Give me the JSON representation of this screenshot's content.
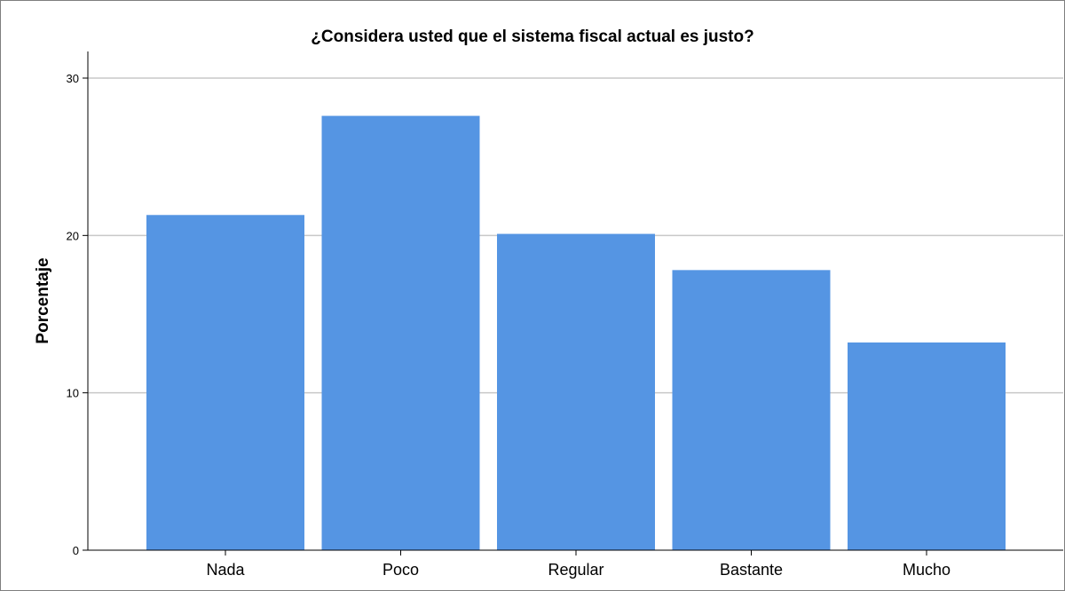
{
  "chart_data": {
    "type": "bar",
    "title": "¿Considera usted que el sistema fiscal actual es justo?",
    "xlabel": "",
    "ylabel": "Porcentaje",
    "categories": [
      "Nada",
      "Poco",
      "Regular",
      "Bastante",
      "Mucho"
    ],
    "values": [
      21.3,
      27.6,
      20.1,
      17.8,
      13.2
    ],
    "ylim": [
      0,
      30
    ],
    "yticks": [
      0,
      10,
      20,
      30
    ],
    "grid": true,
    "bar_color": "#5595e3",
    "grid_color": "#c8c8c8"
  }
}
